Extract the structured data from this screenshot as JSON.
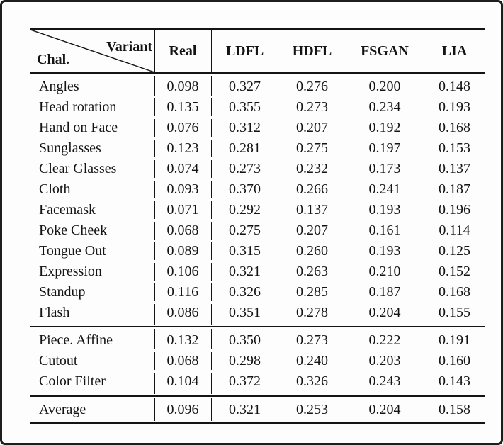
{
  "chart_data": {
    "type": "table",
    "corner": {
      "variant_label": "Variant",
      "chal_label": "Chal."
    },
    "columns": [
      "Real",
      "LDFL",
      "HDFL",
      "FSGAN",
      "LIA"
    ],
    "sections": [
      {
        "name": "challenges",
        "rows": [
          {
            "label": "Angles",
            "values": [
              "0.098",
              "0.327",
              "0.276",
              "0.200",
              "0.148"
            ]
          },
          {
            "label": "Head rotation",
            "values": [
              "0.135",
              "0.355",
              "0.273",
              "0.234",
              "0.193"
            ]
          },
          {
            "label": "Hand on Face",
            "values": [
              "0.076",
              "0.312",
              "0.207",
              "0.192",
              "0.168"
            ]
          },
          {
            "label": "Sunglasses",
            "values": [
              "0.123",
              "0.281",
              "0.275",
              "0.197",
              "0.153"
            ]
          },
          {
            "label": "Clear Glasses",
            "values": [
              "0.074",
              "0.273",
              "0.232",
              "0.173",
              "0.137"
            ]
          },
          {
            "label": "Cloth",
            "values": [
              "0.093",
              "0.370",
              "0.266",
              "0.241",
              "0.187"
            ]
          },
          {
            "label": "Facemask",
            "values": [
              "0.071",
              "0.292",
              "0.137",
              "0.193",
              "0.196"
            ]
          },
          {
            "label": "Poke Cheek",
            "values": [
              "0.068",
              "0.275",
              "0.207",
              "0.161",
              "0.114"
            ]
          },
          {
            "label": "Tongue Out",
            "values": [
              "0.089",
              "0.315",
              "0.260",
              "0.193",
              "0.125"
            ]
          },
          {
            "label": "Expression",
            "values": [
              "0.106",
              "0.321",
              "0.263",
              "0.210",
              "0.152"
            ]
          },
          {
            "label": "Standup",
            "values": [
              "0.116",
              "0.326",
              "0.285",
              "0.187",
              "0.168"
            ]
          },
          {
            "label": "Flash",
            "values": [
              "0.086",
              "0.351",
              "0.278",
              "0.204",
              "0.155"
            ]
          }
        ]
      },
      {
        "name": "augmentations",
        "rows": [
          {
            "label": "Piece. Affine",
            "values": [
              "0.132",
              "0.350",
              "0.273",
              "0.222",
              "0.191"
            ]
          },
          {
            "label": "Cutout",
            "values": [
              "0.068",
              "0.298",
              "0.240",
              "0.203",
              "0.160"
            ]
          },
          {
            "label": "Color Filter",
            "values": [
              "0.104",
              "0.372",
              "0.326",
              "0.243",
              "0.143"
            ]
          }
        ]
      },
      {
        "name": "summary",
        "rows": [
          {
            "label": "Average",
            "values": [
              "0.096",
              "0.321",
              "0.253",
              "0.204",
              "0.158"
            ]
          }
        ]
      }
    ],
    "colors": {
      "text": "#141414",
      "rule": "#141414",
      "background": "#fdfdfd",
      "frame_border": "#1e1e1e"
    }
  }
}
